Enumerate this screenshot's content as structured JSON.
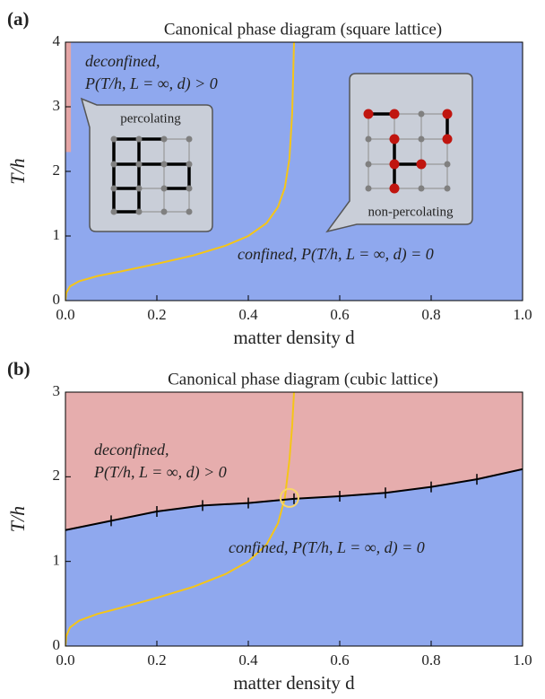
{
  "chart_data": [
    {
      "type": "phase",
      "panel_label": "(a)",
      "title": "Canonical phase diagram (square lattice)",
      "xlabel": "matter density d",
      "ylabel": "T/h",
      "xlim": [
        0,
        1
      ],
      "ylim": [
        0,
        4
      ],
      "xticks": [
        {
          "value": 0,
          "label": "0.0"
        },
        0.2,
        0.4,
        0.6,
        0.8,
        {
          "value": 1,
          "label": "1.0"
        }
      ],
      "yticks": [
        0,
        1,
        2,
        3,
        4
      ],
      "confined_color": "#8fa8ee",
      "deconfined_color": "#e4a6a6",
      "deconfined_region": {
        "x": [
          0,
          0.012
        ],
        "y": [
          2.3,
          4
        ]
      },
      "percolation_curve": {
        "color": "#f5c518",
        "x": [
          0,
          0.002,
          0.01,
          0.03,
          0.07,
          0.12,
          0.2,
          0.28,
          0.35,
          0.4,
          0.44,
          0.465,
          0.48,
          0.49,
          0.496,
          0.5
        ],
        "y": [
          0,
          0.12,
          0.22,
          0.3,
          0.38,
          0.45,
          0.57,
          0.7,
          0.85,
          1.0,
          1.2,
          1.45,
          1.75,
          2.2,
          2.9,
          4
        ]
      },
      "annotations": [
        {
          "text": "deconfined,",
          "color": "#8b1a1a"
        },
        {
          "text": "P(T/h, L = ∞, d) > 0",
          "color": "#8b1a1a"
        },
        {
          "text": "confined, P(T/h, L = ∞, d) = 0",
          "color": "#1a1a9e"
        }
      ],
      "insets": [
        "percolating",
        "non-percolating"
      ]
    },
    {
      "type": "phase",
      "panel_label": "(b)",
      "title": "Canonical phase diagram (cubic lattice)",
      "xlabel": "matter density d",
      "ylabel": "T/h",
      "xlim": [
        0,
        1
      ],
      "ylim": [
        0,
        3
      ],
      "xticks": [
        {
          "value": 0,
          "label": "0.0"
        },
        0.2,
        0.4,
        0.6,
        0.8,
        {
          "value": 1,
          "label": "1.0"
        }
      ],
      "yticks": [
        0,
        1,
        2,
        3
      ],
      "confined_color": "#8fa8ee",
      "deconfined_color": "#e6adad",
      "phase_boundary": {
        "color": "#000000",
        "x": [
          0,
          0.1,
          0.2,
          0.3,
          0.4,
          0.5,
          0.6,
          0.7,
          0.8,
          0.9,
          1.0
        ],
        "y": [
          1.37,
          1.48,
          1.59,
          1.66,
          1.69,
          1.74,
          1.77,
          1.81,
          1.88,
          1.97,
          2.09
        ]
      },
      "percolation_curve": {
        "color": "#f5c518",
        "x": [
          0,
          0.002,
          0.01,
          0.03,
          0.07,
          0.12,
          0.2,
          0.28,
          0.35,
          0.4,
          0.44,
          0.465,
          0.48,
          0.49,
          0.496,
          0.5
        ],
        "y": [
          0,
          0.12,
          0.22,
          0.3,
          0.38,
          0.45,
          0.57,
          0.7,
          0.85,
          1.0,
          1.2,
          1.45,
          1.75,
          2.2,
          2.6,
          3
        ]
      },
      "crossing": {
        "x": 0.49,
        "y": 1.75
      },
      "annotations": [
        {
          "text": "deconfined,",
          "color": "#8b1a1a"
        },
        {
          "text": "P(T/h, L = ∞, d) > 0",
          "color": "#8b1a1a"
        },
        {
          "text": "confined, P(T/h, L = ∞, d) = 0",
          "color": "#1a1a9e"
        }
      ]
    }
  ]
}
